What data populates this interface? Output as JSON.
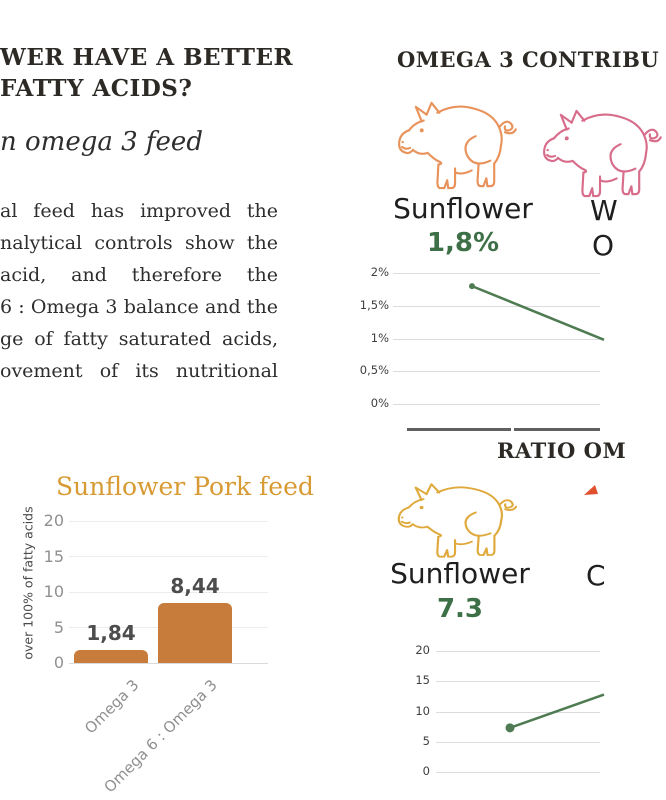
{
  "left_column": {
    "heading_lines": [
      "WER HAVE A BETTER",
      "FATTY ACIDS?"
    ],
    "subtitle_italic": "n omega 3 feed",
    "paragraph_lines": [
      "al feed has improved the",
      "nalytical controls show the",
      "acid, and therefore the",
      "6 : Omega 3 balance and the",
      "ge of fatty saturated acids,",
      "ovement of its nutritional"
    ]
  },
  "right_column": {
    "section1": {
      "title_fragment": "OMEGA 3 CONTRIBU",
      "item1": {
        "label": "Sunflower",
        "value": "1,8%"
      },
      "item2_fragments": {
        "label_line1": "W",
        "label_line2": "O"
      }
    },
    "section2": {
      "title_fragment": "RATIO OM",
      "item1": {
        "label": "Sunflower",
        "value": "7.3"
      },
      "item2_fragments": {
        "label_line1": "C"
      }
    }
  },
  "chart_data": [
    {
      "id": "sunflower-pork-feed-bar",
      "type": "bar",
      "title": "Sunflower Pork feed",
      "ylabel": "over 100% of fatty acids",
      "categories": [
        "Omega 3",
        "Omega 6 : Omega 3"
      ],
      "values": [
        1.84,
        8.44
      ],
      "value_labels": [
        "1,84",
        "8,44"
      ],
      "yticks": [
        0,
        5,
        10,
        15,
        20
      ],
      "ylim": [
        0,
        20
      ],
      "bar_color": "#c87c3b"
    },
    {
      "id": "omega3-contribution-line",
      "type": "line",
      "title_fragment": "OMEGA 3 CONTRIBU",
      "yticks": [
        "2%",
        "1,5%",
        "1%",
        "0,5%",
        "0%"
      ],
      "ylim": [
        0,
        2
      ],
      "points": [
        {
          "x": "Sunflower",
          "value": 1.8,
          "label": "1,8%"
        }
      ],
      "crop_edge_value": 0.98,
      "line_color": "#4e7b52"
    },
    {
      "id": "ratio-omega6-omega3-line",
      "type": "line",
      "title_fragment": "RATIO OM",
      "yticks": [
        "20",
        "15",
        "10",
        "5",
        "0"
      ],
      "ylim": [
        0,
        20
      ],
      "points": [
        {
          "x": "Sunflower",
          "value": 7.3,
          "label": "7.3"
        }
      ],
      "crop_edge_value": 12.8,
      "line_color": "#4e7b52"
    }
  ],
  "icons": {
    "pig_orange": "#e8935b",
    "pig_pink": "#d76c8b",
    "pig_gold": "#dfa93b",
    "pig_red_fragment": "#e0502f"
  },
  "colors": {
    "heading_text": "#2d2a26",
    "body_text": "#2e2e2e",
    "green_value": "#3e7048",
    "line_green": "#4e7b52",
    "gold_title": "#d89a33",
    "bar_orange": "#c87c3b",
    "gridline": "#dcdcdc",
    "dark_axis": "#606060",
    "tick_gray": "#8f8f8f"
  }
}
